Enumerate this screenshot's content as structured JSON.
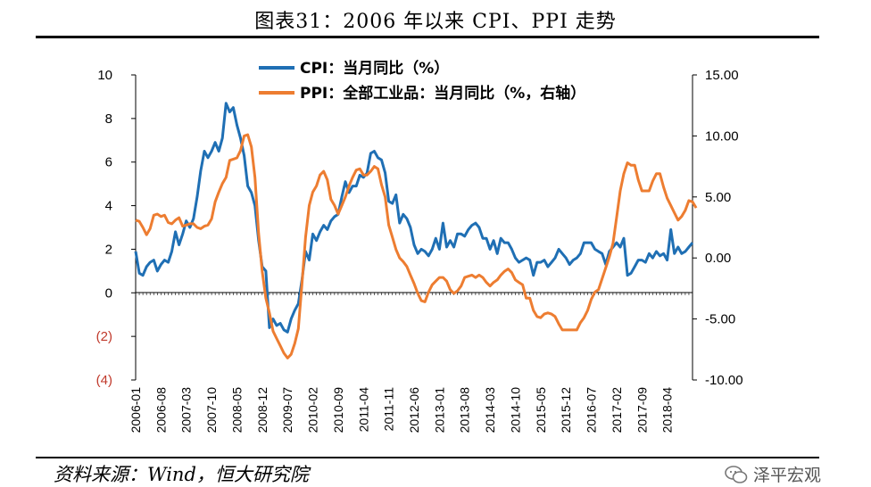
{
  "page": {
    "title": "图表31：2006 年以来 CPI、PPI 走势",
    "source": "资料来源：Wind，恒大研究院",
    "watermark": "泽平宏观",
    "watermark_icon": "wechat-icon"
  },
  "chart_data": {
    "type": "line",
    "title": "图表31：2006 年以来 CPI、PPI 走势",
    "xlabel": "",
    "ylabel": "",
    "ylim": [
      -4,
      10
    ],
    "y2lim": [
      -10,
      15
    ],
    "y_ticks": [
      "10",
      "8",
      "6",
      "4",
      "2",
      "0",
      "(2)",
      "(4)"
    ],
    "y_tick_values": [
      10,
      8,
      6,
      4,
      2,
      0,
      -2,
      -4
    ],
    "y2_ticks": [
      "15.00",
      "10.00",
      "5.00",
      "0.00",
      "-5.00",
      "-10.00"
    ],
    "y2_tick_values": [
      15,
      10,
      5,
      0,
      -5,
      -10
    ],
    "x_ticks": [
      "2006-01",
      "2006-08",
      "2007-03",
      "2007-10",
      "2008-05",
      "2008-12",
      "2009-07",
      "2010-02",
      "2010-09",
      "2011-04",
      "2011-11",
      "2012-06",
      "2013-01",
      "2013-08",
      "2014-03",
      "2014-10",
      "2015-05",
      "2015-12",
      "2016-07",
      "2017-02",
      "2017-09",
      "2018-04"
    ],
    "grid": false,
    "legend_position": "top",
    "colors": {
      "cpi": "#1f6fb4",
      "ppi": "#ed7d31",
      "negative_tick": "#c0392b"
    },
    "series": [
      {
        "name": "CPI：当月同比（%）",
        "axis": "left",
        "x_start": "2006-01",
        "values": [
          1.9,
          0.9,
          0.8,
          1.2,
          1.4,
          1.5,
          1.0,
          1.3,
          1.5,
          1.4,
          1.9,
          2.8,
          2.2,
          2.7,
          3.3,
          3.0,
          3.4,
          4.4,
          5.6,
          6.5,
          6.2,
          6.5,
          6.9,
          6.5,
          7.1,
          8.7,
          8.3,
          8.5,
          7.7,
          7.1,
          6.3,
          4.9,
          4.6,
          4.0,
          2.4,
          1.2,
          1.0,
          -1.6,
          -1.2,
          -1.5,
          -1.4,
          -1.7,
          -1.8,
          -1.2,
          -0.8,
          -0.5,
          0.6,
          1.9,
          1.5,
          2.7,
          2.4,
          2.8,
          3.1,
          2.9,
          3.3,
          3.5,
          3.6,
          4.4,
          5.1,
          4.6,
          4.9,
          4.9,
          5.4,
          5.3,
          5.5,
          6.4,
          6.5,
          6.2,
          6.1,
          5.5,
          4.2,
          4.1,
          4.5,
          3.2,
          3.6,
          3.4,
          3.0,
          2.2,
          1.8,
          2.0,
          1.9,
          1.7,
          2.0,
          2.5,
          2.0,
          3.2,
          2.1,
          2.4,
          2.1,
          2.7,
          2.7,
          2.6,
          2.9,
          3.1,
          3.2,
          3.0,
          2.5,
          2.5,
          2.0,
          2.4,
          1.8,
          2.5,
          2.3,
          2.3,
          2.0,
          1.6,
          1.4,
          1.5,
          1.6,
          1.5,
          0.8,
          1.4,
          1.4,
          1.5,
          1.2,
          1.4,
          1.6,
          2.0,
          1.8,
          1.6,
          1.3,
          1.5,
          1.6,
          1.8,
          2.3,
          2.3,
          2.3,
          2.0,
          1.9,
          1.8,
          1.3,
          1.9,
          2.1,
          2.3,
          2.1,
          2.5,
          0.8,
          0.9,
          1.2,
          1.5,
          1.5,
          1.4,
          1.8,
          1.6,
          1.9,
          1.7,
          1.8,
          1.5,
          2.9,
          1.8,
          2.1,
          1.8,
          1.9,
          2.1,
          2.3
        ]
      },
      {
        "name": "PPI：全部工业品：当月同比（%，右轴）",
        "axis": "right",
        "x_start": "2006-01",
        "values": [
          3.1,
          3.0,
          2.5,
          1.9,
          2.4,
          3.5,
          3.6,
          3.4,
          3.5,
          2.9,
          2.8,
          3.1,
          3.3,
          2.6,
          2.7,
          2.8,
          2.8,
          2.5,
          2.4,
          2.6,
          2.7,
          3.2,
          4.6,
          5.4,
          6.1,
          6.6,
          8.0,
          8.1,
          8.2,
          8.8,
          10.0,
          10.1,
          9.1,
          6.6,
          2.0,
          -1.1,
          -3.3,
          -4.5,
          -6.0,
          -6.6,
          -7.2,
          -7.8,
          -8.2,
          -7.9,
          -7.0,
          -5.8,
          -2.1,
          1.7,
          4.3,
          5.4,
          5.9,
          6.8,
          7.1,
          6.4,
          4.8,
          4.3,
          3.6,
          4.3,
          5.0,
          5.9,
          6.6,
          7.2,
          7.3,
          6.8,
          6.8,
          7.1,
          7.5,
          7.3,
          6.0,
          5.0,
          2.7,
          1.7,
          0.7,
          0.0,
          -0.3,
          -0.7,
          -1.4,
          -2.1,
          -2.9,
          -3.5,
          -3.6,
          -2.8,
          -2.2,
          -1.9,
          -1.6,
          -1.6,
          -1.9,
          -2.6,
          -2.9,
          -2.7,
          -2.3,
          -1.6,
          -1.5,
          -1.4,
          -1.6,
          -1.4,
          -1.6,
          -2.0,
          -2.3,
          -2.0,
          -1.8,
          -1.4,
          -1.1,
          -0.9,
          -1.2,
          -1.8,
          -2.0,
          -2.2,
          -3.3,
          -3.3,
          -4.3,
          -4.8,
          -4.9,
          -4.6,
          -4.5,
          -4.6,
          -4.8,
          -5.4,
          -5.9,
          -5.9,
          -5.9,
          -5.9,
          -5.9,
          -5.3,
          -4.9,
          -4.3,
          -3.4,
          -2.8,
          -2.6,
          -1.7,
          -0.8,
          0.1,
          1.2,
          3.3,
          5.5,
          6.9,
          7.8,
          7.6,
          7.6,
          6.4,
          5.5,
          5.5,
          5.5,
          6.3,
          6.9,
          6.9,
          5.8,
          4.9,
          4.3,
          3.7,
          3.1,
          3.4,
          3.9,
          4.7,
          4.6,
          4.1
        ]
      }
    ]
  }
}
